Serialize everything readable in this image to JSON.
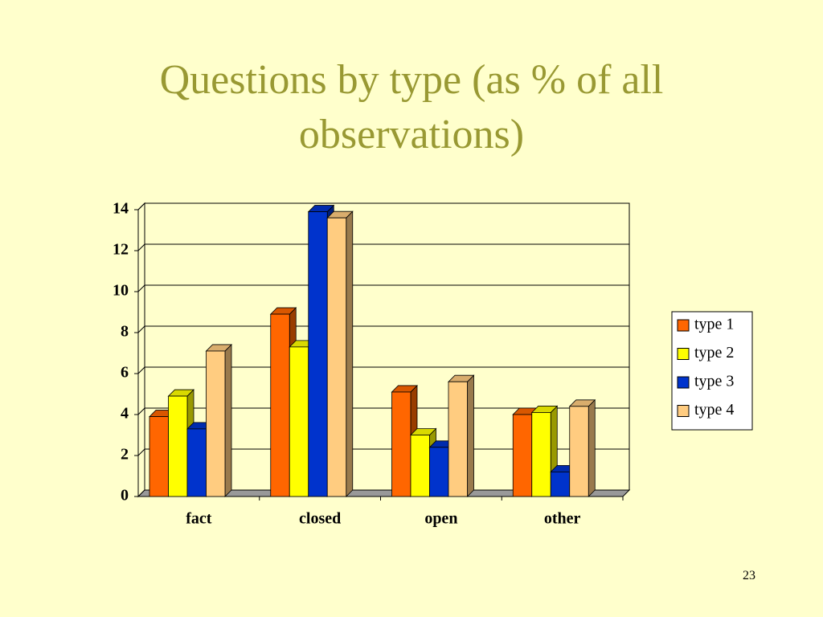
{
  "title": "Questions by type (as % of all observations)",
  "slide_number": "23",
  "chart_data": {
    "type": "bar3d",
    "categories": [
      "fact",
      "closed",
      "open",
      "other"
    ],
    "series": [
      {
        "name": "type 1",
        "color": "#ff6600",
        "values": [
          3.9,
          8.9,
          5.1,
          4.0
        ]
      },
      {
        "name": "type 2",
        "color": "#ffff00",
        "values": [
          4.9,
          7.3,
          3.0,
          4.1
        ]
      },
      {
        "name": "type 3",
        "color": "#0033cc",
        "values": [
          3.3,
          13.9,
          2.4,
          1.2
        ]
      },
      {
        "name": "type 4",
        "color": "#ffcc80",
        "values": [
          7.1,
          13.6,
          5.6,
          4.4
        ]
      }
    ],
    "ylim": [
      0,
      14
    ],
    "yticks": [
      0,
      2,
      4,
      6,
      8,
      10,
      12,
      14
    ],
    "grid": true,
    "legend": "right"
  }
}
